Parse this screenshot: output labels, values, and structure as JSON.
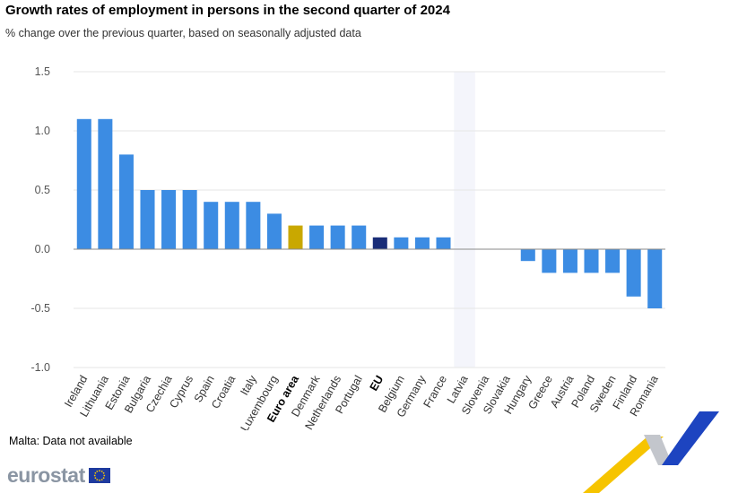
{
  "header": {
    "title": "Growth rates of employment in persons in the second quarter of 2024",
    "subtitle": "% change over the previous quarter, based on seasonally adjusted data"
  },
  "footer": {
    "note": "Malta: Data not available",
    "brand": "eurostat",
    "flag_icon": "eu-flag-icon"
  },
  "colors": {
    "bar": "#3c8ce3",
    "euro_area": "#c9a800",
    "eu": "#1a2d78",
    "highlight_band": "#f4f5fb",
    "grid": "#e6e6e6",
    "deco_yellow": "#f6c400",
    "deco_blue": "#1d44c0",
    "deco_gray": "#c3c6cc"
  },
  "chart_data": {
    "type": "bar",
    "title": "Growth rates of employment in persons in the second quarter of 2024",
    "subtitle": "% change over the previous quarter, based on seasonally adjusted data",
    "xlabel": "",
    "ylabel": "",
    "ylim": [
      -1.0,
      1.5
    ],
    "yticks": [
      "1.5",
      "1.0",
      "0.5",
      "0.0",
      "-0.5",
      "-1.0"
    ],
    "grid": true,
    "highlighted_category": "Latvia",
    "bold_categories": [
      "Euro area",
      "EU"
    ],
    "categories": [
      "Ireland",
      "Lithuania",
      "Estonia",
      "Bulgaria",
      "Czechia",
      "Cyprus",
      "Spain",
      "Croatia",
      "Italy",
      "Luxembourg",
      "Euro area",
      "Denmark",
      "Netherlands",
      "Portugal",
      "EU",
      "Belgium",
      "Germany",
      "France",
      "Latvia",
      "Slovenia",
      "Slovakia",
      "Hungary",
      "Greece",
      "Austria",
      "Poland",
      "Sweden",
      "Finland",
      "Romania"
    ],
    "values": [
      1.1,
      1.1,
      0.8,
      0.5,
      0.5,
      0.5,
      0.4,
      0.4,
      0.4,
      0.3,
      0.2,
      0.2,
      0.2,
      0.2,
      0.1,
      0.1,
      0.1,
      0.1,
      0.0,
      0.0,
      0.0,
      -0.1,
      -0.2,
      -0.2,
      -0.2,
      -0.2,
      -0.4,
      -0.5
    ]
  }
}
